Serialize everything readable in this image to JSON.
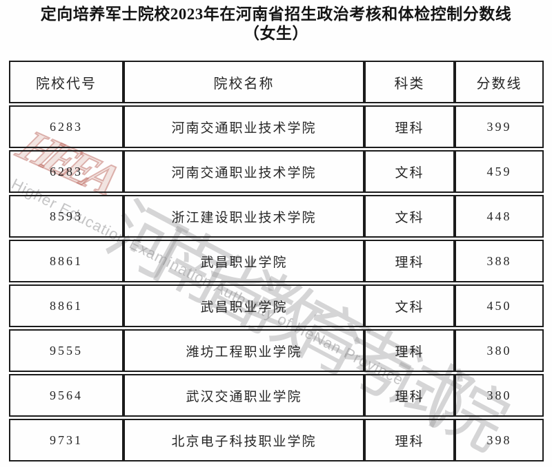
{
  "title": {
    "line1": "定向培养军士院校2023年在河南省招生政治考核和体检控制分数线",
    "line2": "（女生）"
  },
  "table": {
    "headers": [
      "院校代号",
      "院校名称",
      "科类",
      "分数线"
    ],
    "rows": [
      [
        "6283",
        "河南交通职业技术学院",
        "理科",
        "399"
      ],
      [
        "6283",
        "河南交通职业技术学院",
        "文科",
        "459"
      ],
      [
        "8593",
        "浙江建设职业技术学院",
        "文科",
        "448"
      ],
      [
        "8861",
        "武昌职业学院",
        "理科",
        "388"
      ],
      [
        "8861",
        "武昌职业学院",
        "文科",
        "450"
      ],
      [
        "9555",
        "潍坊工程职业学院",
        "理科",
        "380"
      ],
      [
        "9564",
        "武汉交通职业学院",
        "理科",
        "380"
      ],
      [
        "9731",
        "北京电子科技职业学院",
        "理科",
        "398"
      ]
    ]
  },
  "watermark": {
    "logo_text": "HEEA",
    "cn_text": "河南省教育考试院",
    "en_text": "Higher Education Examination Authority of HeNan Province",
    "logo_color": "#ba6258",
    "gray_color": "#949496"
  },
  "colors": {
    "border": "#1b1b1b",
    "background": "#fefefe",
    "text": "#262626",
    "title_text": "#141414"
  }
}
